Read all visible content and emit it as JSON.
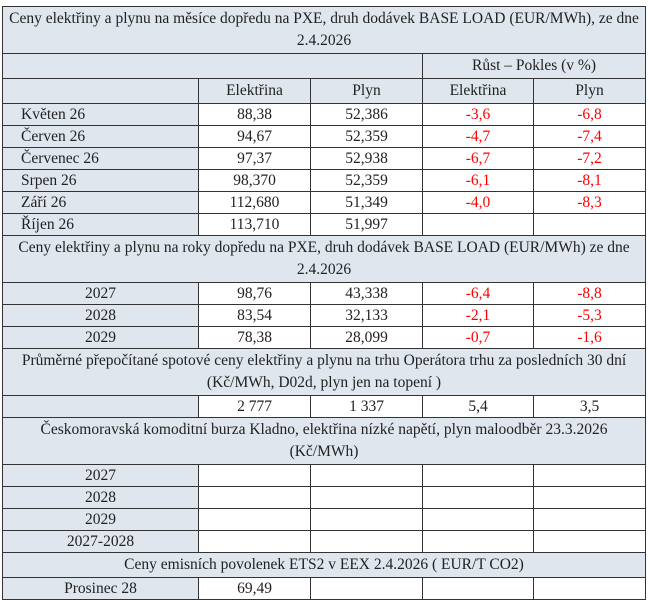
{
  "section_months": {
    "title": "Ceny elektřiny a plynu na měsíce dopředu na PXE, druh dodávek BASE LOAD (EUR/MWh), ze dne 2.4.2026",
    "change_header": "Růst – Pokles (v %)",
    "columns": [
      "Elektřina",
      "Plyn",
      "Elektřina",
      "Plyn"
    ],
    "rows": [
      {
        "label": "Květen  26",
        "electricity": "88,38",
        "gas": "52,386",
        "electricity_change": "-3,6",
        "gas_change": "-6,8"
      },
      {
        "label": "Červen 26",
        "electricity": "94,67",
        "gas": "52,359",
        "electricity_change": "-4,7",
        "gas_change": "-7,4"
      },
      {
        "label": "Červenec 26",
        "electricity": "97,37",
        "gas": "52,938",
        "electricity_change": "-6,7",
        "gas_change": "-7,2"
      },
      {
        "label": "Srpen 26",
        "electricity": "98,370",
        "gas": "52,359",
        "electricity_change": "-6,1",
        "gas_change": "-8,1"
      },
      {
        "label": "Září 26",
        "electricity": "112,680",
        "gas": "51,349",
        "electricity_change": "-4,0",
        "gas_change": "-8,3"
      },
      {
        "label": "Říjen 26",
        "electricity": "113,710",
        "gas": "51,997",
        "electricity_change": "",
        "gas_change": ""
      }
    ]
  },
  "section_years": {
    "title": "Ceny elektřiny a plynu na roky dopředu na PXE, druh dodávek BASE LOAD (EUR/MWh) ze dne 2.4.2026",
    "rows": [
      {
        "label": "2027",
        "electricity": "98,76",
        "gas": "43,338",
        "electricity_change": "-6,4",
        "gas_change": "-8,8"
      },
      {
        "label": "2028",
        "electricity": "83,54",
        "gas": "32,133",
        "electricity_change": "-2,1",
        "gas_change": "-5,3"
      },
      {
        "label": "2029",
        "electricity": "78,38",
        "gas": "28,099",
        "electricity_change": "-0,7",
        "gas_change": "-1,6"
      }
    ]
  },
  "section_spot": {
    "title": "Průměrné přepočítané spotové ceny elektřiny a plynu na trhu Operátora trhu za posledních 30 dní (Kč/MWh, D02d, plyn jen na topení )",
    "rows": [
      {
        "label": "",
        "electricity": "2 777",
        "gas": "1 337",
        "electricity_change": "5,4",
        "gas_change": "3,5"
      }
    ]
  },
  "section_kladno": {
    "title": "Českomoravská komoditní burza Kladno, elektřina nízké napětí, plyn maloodběr 23.3.2026 (Kč/MWh)",
    "rows": [
      {
        "label": "2027",
        "electricity": "",
        "gas": "",
        "electricity_change": "",
        "gas_change": ""
      },
      {
        "label": "2028",
        "electricity": "",
        "gas": "",
        "electricity_change": "",
        "gas_change": ""
      },
      {
        "label": "2029",
        "electricity": "",
        "gas": "",
        "electricity_change": "",
        "gas_change": ""
      },
      {
        "label": "2027-2028",
        "electricity": "",
        "gas": "",
        "electricity_change": "",
        "gas_change": ""
      }
    ]
  },
  "section_ets": {
    "title": "Ceny emisních povolenek ETS2 v EEX 2.4.2026  ( EUR/T CO2)",
    "rows": [
      {
        "label": "Prosinec 28",
        "electricity": "69,49",
        "gas": "",
        "electricity_change": "",
        "gas_change": ""
      }
    ]
  },
  "colors": {
    "header_bg": "#dfe6ee",
    "negative": "#ff0000",
    "border": "#333333"
  }
}
